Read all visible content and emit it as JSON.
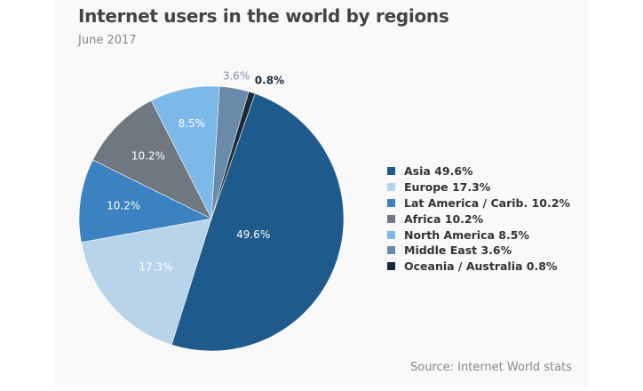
{
  "chart_data": {
    "type": "pie",
    "title": "Internet users in the world by regions",
    "subtitle": "June 2017",
    "source": "Source: Internet World stats",
    "legend_position": "right",
    "slices": [
      {
        "name": "Middle East",
        "value": 3.6,
        "label": "3.6%",
        "legend": "Middle East 3.6%",
        "color": "#6a8aaa",
        "label_color": "#7f93a8"
      },
      {
        "name": "Oceania / Australia",
        "value": 0.8,
        "label": "0.8%",
        "legend": "Oceania / Australia 0.8%",
        "color": "#1a2a3a",
        "label_color": "#1a2a3a"
      },
      {
        "name": "Asia",
        "value": 49.6,
        "label": "49.6%",
        "legend": "Asia 49.6%",
        "color": "#1f5a8c",
        "label_color": "#ffffff"
      },
      {
        "name": "Europe",
        "value": 17.3,
        "label": "17.3%",
        "legend": "Europe 17.3%",
        "color": "#b8d4ea",
        "label_color": "#ffffff"
      },
      {
        "name": "Lat America / Carib.",
        "value": 10.2,
        "label": "10.2%",
        "legend": "Lat America / Carib. 10.2%",
        "color": "#3a82c0",
        "label_color": "#ffffff"
      },
      {
        "name": "Africa",
        "value": 10.2,
        "label": "10.2%",
        "legend": "Africa 10.2%",
        "color": "#6f7780",
        "label_color": "#ffffff"
      },
      {
        "name": "North America",
        "value": 8.5,
        "label": "8.5%",
        "legend": "North America 8.5%",
        "color": "#7db9e8",
        "label_color": "#ffffff"
      }
    ],
    "legend_order": [
      2,
      3,
      4,
      5,
      6,
      0,
      1
    ]
  }
}
